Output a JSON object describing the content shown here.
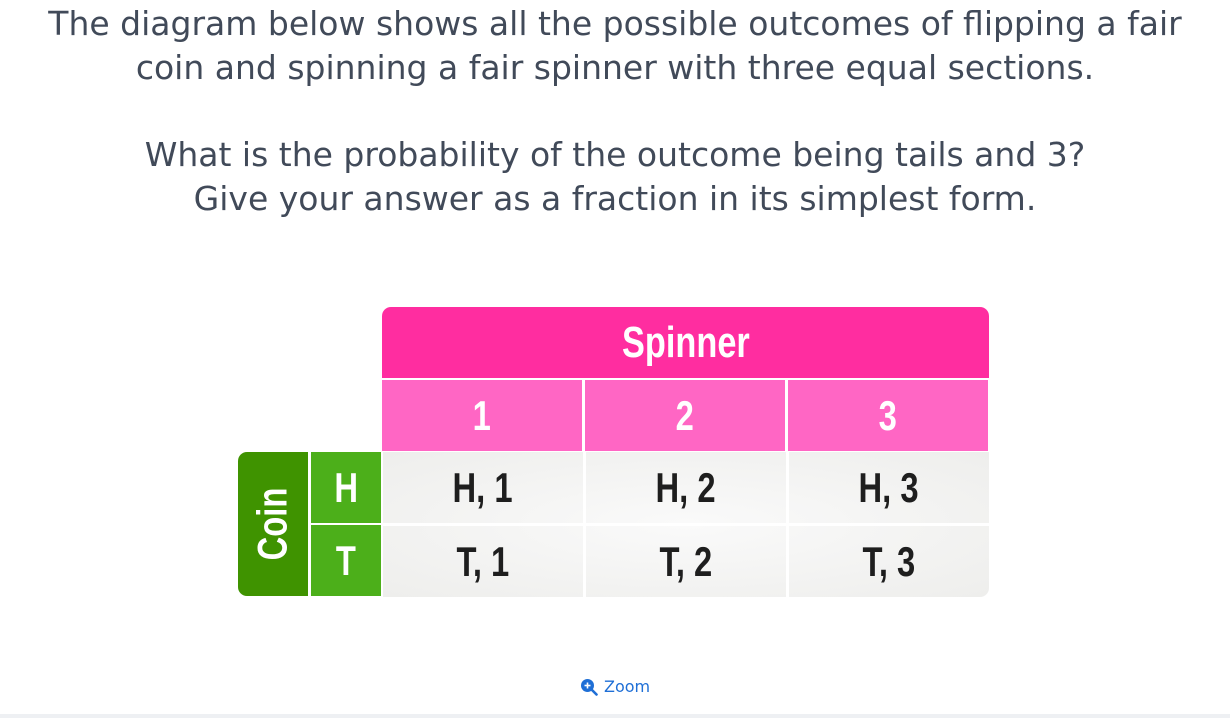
{
  "question": {
    "line1": "The diagram below shows all the possible outcomes of flipping a fair",
    "line2": "coin and spinning a fair spinner with three equal sections.",
    "line3": "What is the probability of the outcome being tails and 3?",
    "line4": "Give your answer as a fraction in its simplest form."
  },
  "table": {
    "spinner_label": "Spinner",
    "coin_label": "Coin",
    "spinner_values": [
      "1",
      "2",
      "3"
    ],
    "coin_values": [
      "H",
      "T"
    ],
    "outcomes": [
      [
        "H, 1",
        "H, 2",
        "H, 3"
      ],
      [
        "T, 1",
        "T, 2",
        "T, 3"
      ]
    ],
    "colors": {
      "spinner_header": "#ff2da0",
      "spinner_values": "#ff66c4",
      "coin_header": "#3f9300",
      "coin_values": "#4caf1a"
    }
  },
  "zoom": {
    "label": "Zoom",
    "icon": "zoom-in-icon"
  }
}
